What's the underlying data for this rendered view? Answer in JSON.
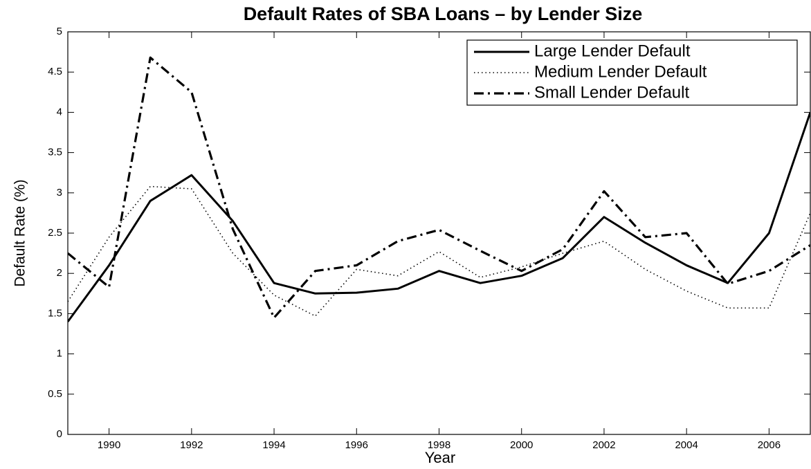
{
  "chart_data": {
    "type": "line",
    "title": "Default Rates of SBA Loans – by Lender Size",
    "x_label": "Year",
    "y_label": "Default Rate (%)",
    "x": [
      1989,
      1990,
      1991,
      1992,
      1993,
      1994,
      1995,
      1996,
      1997,
      1998,
      1999,
      2000,
      2001,
      2002,
      2003,
      2004,
      2005,
      2006,
      2007
    ],
    "series": [
      {
        "name": "Large Lender Default",
        "color": "#000000",
        "dash": "solid",
        "values": [
          1.4,
          2.1,
          2.9,
          3.22,
          2.65,
          1.88,
          1.75,
          1.76,
          1.81,
          2.03,
          1.88,
          1.97,
          2.19,
          2.7,
          2.38,
          2.1,
          1.88,
          2.5,
          4.0
        ]
      },
      {
        "name": "Medium Lender Default",
        "color": "#000000",
        "dash": "dotted",
        "values": [
          1.65,
          2.45,
          3.08,
          3.05,
          2.25,
          1.73,
          1.47,
          2.05,
          1.97,
          2.27,
          1.95,
          2.08,
          2.25,
          2.4,
          2.05,
          1.78,
          1.57,
          1.57,
          2.75
        ]
      },
      {
        "name": "Small Lender Default",
        "color": "#000000",
        "dash": "dashdot",
        "values": [
          2.25,
          1.83,
          4.68,
          4.25,
          2.55,
          1.45,
          2.03,
          2.1,
          2.4,
          2.54,
          2.28,
          2.03,
          2.3,
          3.02,
          2.45,
          2.5,
          1.87,
          2.03,
          2.35
        ]
      }
    ],
    "xlim": [
      1989,
      2007
    ],
    "xticks": [
      1990,
      1992,
      1994,
      1996,
      1998,
      2000,
      2002,
      2004,
      2006
    ],
    "ylim": [
      0,
      5
    ],
    "yticks": [
      0,
      0.5,
      1,
      1.5,
      2,
      2.5,
      3,
      3.5,
      4,
      4.5,
      5
    ],
    "grid": false,
    "legend": "upper right"
  }
}
